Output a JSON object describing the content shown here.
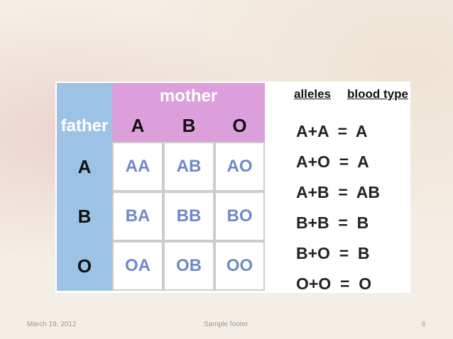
{
  "table": {
    "corner": "father",
    "header": "mother",
    "columns": [
      "A",
      "B",
      "O"
    ],
    "rows": [
      {
        "label": "A",
        "cells": [
          "AA",
          "AB",
          "AO"
        ]
      },
      {
        "label": "B",
        "cells": [
          "BA",
          "BB",
          "BO"
        ]
      },
      {
        "label": "O",
        "cells": [
          "OA",
          "OB",
          "OO"
        ]
      }
    ]
  },
  "legend": {
    "headers": [
      "alleles",
      "blood type"
    ],
    "rows": [
      "A+A  =  A",
      "A+O  =  A",
      "A+B  =  AB",
      "B+B  =  B",
      "B+O  =  B",
      "O+O  =  O"
    ]
  },
  "footer": {
    "date": "March 19, 2012",
    "text": "Sample footer",
    "page": "6"
  }
}
